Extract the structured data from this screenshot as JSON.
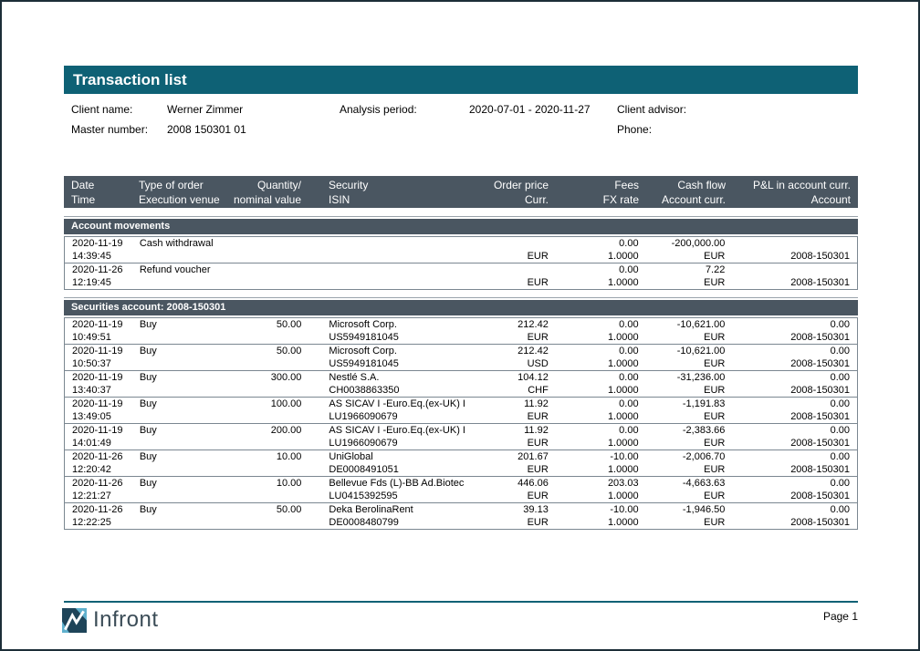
{
  "header": {
    "title": "Transaction list"
  },
  "colors": {
    "accent_teal": "#0e6175",
    "header_slate": "#4a5661",
    "row_border": "#7b8791",
    "logo_dark": "#1e4459",
    "logo_light": "#5fb0cd"
  },
  "info": {
    "client_name_label": "Client name:",
    "client_name": "Werner Zimmer",
    "master_number_label": "Master number:",
    "master_number": "2008 150301 01",
    "analysis_period_label": "Analysis period:",
    "analysis_period": "2020-07-01 - 2020-11-27",
    "client_advisor_label": "Client advisor:",
    "client_advisor": "",
    "phone_label": "Phone:",
    "phone": ""
  },
  "table": {
    "columns": [
      {
        "l1": "Date",
        "l2": "Time",
        "align": "left"
      },
      {
        "l1": "Type of order",
        "l2": "Execution venue",
        "align": "left"
      },
      {
        "l1": "Quantity/",
        "l2": "nominal value",
        "align": "right"
      },
      {
        "l1": "Security",
        "l2": "ISIN",
        "align": "left"
      },
      {
        "l1": "Order price",
        "l2": "Curr.",
        "align": "right"
      },
      {
        "l1": "Fees",
        "l2": "FX rate",
        "align": "right"
      },
      {
        "l1": "Cash flow",
        "l2": "Account curr.",
        "align": "right"
      },
      {
        "l1": "P&L in account curr.",
        "l2": "Account",
        "align": "right"
      }
    ],
    "sections": [
      {
        "title": "Account movements",
        "rows": [
          [
            [
              "2020-11-19",
              "14:39:45"
            ],
            [
              "Cash withdrawal",
              ""
            ],
            [
              "",
              ""
            ],
            [
              "",
              ""
            ],
            [
              "",
              "EUR"
            ],
            [
              "0.00",
              "1.0000"
            ],
            [
              "-200,000.00",
              "EUR"
            ],
            [
              "",
              "2008-150301"
            ]
          ],
          [
            [
              "2020-11-26",
              "12:19:45"
            ],
            [
              "Refund voucher",
              ""
            ],
            [
              "",
              ""
            ],
            [
              "",
              ""
            ],
            [
              "",
              "EUR"
            ],
            [
              "0.00",
              "1.0000"
            ],
            [
              "7.22",
              "EUR"
            ],
            [
              "",
              "2008-150301"
            ]
          ]
        ]
      },
      {
        "title": "Securities account: 2008-150301",
        "rows": [
          [
            [
              "2020-11-19",
              "10:49:51"
            ],
            [
              "Buy",
              ""
            ],
            [
              "50.00",
              ""
            ],
            [
              "Microsoft Corp.",
              "US5949181045"
            ],
            [
              "212.42",
              "EUR"
            ],
            [
              "0.00",
              "1.0000"
            ],
            [
              "-10,621.00",
              "EUR"
            ],
            [
              "0.00",
              "2008-150301"
            ]
          ],
          [
            [
              "2020-11-19",
              "10:50:37"
            ],
            [
              "Buy",
              ""
            ],
            [
              "50.00",
              ""
            ],
            [
              "Microsoft Corp.",
              "US5949181045"
            ],
            [
              "212.42",
              "USD"
            ],
            [
              "0.00",
              "1.0000"
            ],
            [
              "-10,621.00",
              "EUR"
            ],
            [
              "0.00",
              "2008-150301"
            ]
          ],
          [
            [
              "2020-11-19",
              "13:40:37"
            ],
            [
              "Buy",
              ""
            ],
            [
              "300.00",
              ""
            ],
            [
              "Nestlé S.A.",
              "CH0038863350"
            ],
            [
              "104.12",
              "CHF"
            ],
            [
              "0.00",
              "1.0000"
            ],
            [
              "-31,236.00",
              "EUR"
            ],
            [
              "0.00",
              "2008-150301"
            ]
          ],
          [
            [
              "2020-11-19",
              "13:49:05"
            ],
            [
              "Buy",
              ""
            ],
            [
              "100.00",
              ""
            ],
            [
              "AS SICAV I -Euro.Eq.(ex-UK) I",
              "LU1966090679"
            ],
            [
              "11.92",
              "EUR"
            ],
            [
              "0.00",
              "1.0000"
            ],
            [
              "-1,191.83",
              "EUR"
            ],
            [
              "0.00",
              "2008-150301"
            ]
          ],
          [
            [
              "2020-11-19",
              "14:01:49"
            ],
            [
              "Buy",
              ""
            ],
            [
              "200.00",
              ""
            ],
            [
              "AS SICAV I -Euro.Eq.(ex-UK) I",
              "LU1966090679"
            ],
            [
              "11.92",
              "EUR"
            ],
            [
              "0.00",
              "1.0000"
            ],
            [
              "-2,383.66",
              "EUR"
            ],
            [
              "0.00",
              "2008-150301"
            ]
          ],
          [
            [
              "2020-11-26",
              "12:20:42"
            ],
            [
              "Buy",
              ""
            ],
            [
              "10.00",
              ""
            ],
            [
              "UniGlobal",
              "DE0008491051"
            ],
            [
              "201.67",
              "EUR"
            ],
            [
              "-10.00",
              "1.0000"
            ],
            [
              "-2,006.70",
              "EUR"
            ],
            [
              "0.00",
              "2008-150301"
            ]
          ],
          [
            [
              "2020-11-26",
              "12:21:27"
            ],
            [
              "Buy",
              ""
            ],
            [
              "10.00",
              ""
            ],
            [
              "Bellevue Fds (L)-BB Ad.Biotec",
              "LU0415392595"
            ],
            [
              "446.06",
              "EUR"
            ],
            [
              "203.03",
              "1.0000"
            ],
            [
              "-4,663.63",
              "EUR"
            ],
            [
              "0.00",
              "2008-150301"
            ]
          ],
          [
            [
              "2020-11-26",
              "12:22:25"
            ],
            [
              "Buy",
              ""
            ],
            [
              "50.00",
              ""
            ],
            [
              "Deka BerolinaRent",
              "DE0008480799"
            ],
            [
              "39.13",
              "EUR"
            ],
            [
              "-10.00",
              "1.0000"
            ],
            [
              "-1,946.50",
              "EUR"
            ],
            [
              "0.00",
              "2008-150301"
            ]
          ]
        ]
      }
    ]
  },
  "footer": {
    "brand": "Infront",
    "logo_icon": "infront-zigzag-logo",
    "page_label": "Page 1"
  }
}
